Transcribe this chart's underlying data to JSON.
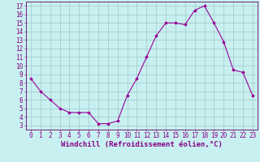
{
  "x": [
    0,
    1,
    2,
    3,
    4,
    5,
    6,
    7,
    8,
    9,
    10,
    11,
    12,
    13,
    14,
    15,
    16,
    17,
    18,
    19,
    20,
    21,
    22,
    23
  ],
  "y": [
    8.5,
    7.0,
    6.0,
    5.0,
    4.5,
    4.5,
    4.5,
    3.2,
    3.2,
    3.5,
    6.5,
    8.5,
    11.0,
    13.5,
    15.0,
    15.0,
    14.8,
    16.5,
    17.0,
    15.0,
    12.8,
    9.5,
    9.2,
    6.5
  ],
  "line_color": "#990099",
  "marker": "D",
  "markersize": 1.8,
  "linewidth": 0.8,
  "bg_color": "#c8f0f0",
  "grid_color": "#a0c8c8",
  "xlabel": "Windchill (Refroidissement éolien,°C)",
  "xlabel_fontsize": 6.5,
  "ylabel_ticks": [
    3,
    4,
    5,
    6,
    7,
    8,
    9,
    10,
    11,
    12,
    13,
    14,
    15,
    16,
    17
  ],
  "xlim": [
    -0.5,
    23.5
  ],
  "ylim": [
    2.5,
    17.5
  ],
  "tick_fontsize": 5.5,
  "tick_color": "#880088",
  "label_color": "#880088",
  "axis_color": "#880088",
  "spine_color": "#660066"
}
